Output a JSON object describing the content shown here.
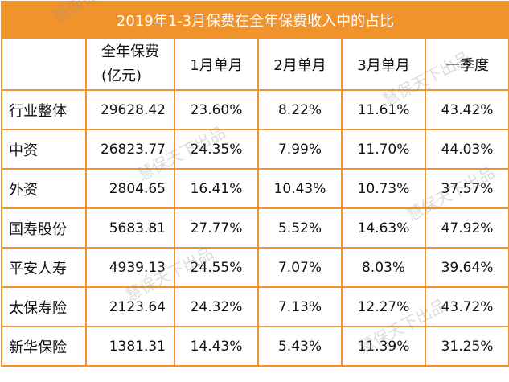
{
  "title": "2019年1-3月保费在全年保费收入中的占比",
  "headers": [
    "",
    "全年保费(亿元)",
    "1月单月",
    "2月单月",
    "3月单月",
    "一季度"
  ],
  "header_premium_line1": "全年保费",
  "header_premium_line2": "(亿元)",
  "rows": [
    {
      "name": "行业整体",
      "premium": "29628.42",
      "jan": "23.60%",
      "feb": "8.22%",
      "mar": "11.61%",
      "q1": "43.42%"
    },
    {
      "name": "中资",
      "premium": "26823.77",
      "jan": "24.35%",
      "feb": "7.99%",
      "mar": "11.70%",
      "q1": "44.03%"
    },
    {
      "name": "外资",
      "premium": "2804.65",
      "jan": "16.41%",
      "feb": "10.43%",
      "mar": "10.73%",
      "q1": "37.57%"
    },
    {
      "name": "国寿股份",
      "premium": "5683.81",
      "jan": "27.77%",
      "feb": "5.52%",
      "mar": "14.63%",
      "q1": "47.92%"
    },
    {
      "name": "平安人寿",
      "premium": "4939.13",
      "jan": "24.55%",
      "feb": "7.07%",
      "mar": "8.03%",
      "q1": "39.64%"
    },
    {
      "name": "太保寿险",
      "premium": "2123.64",
      "jan": "24.32%",
      "feb": "7.13%",
      "mar": "12.27%",
      "q1": "43.72%"
    },
    {
      "name": "新华保险",
      "premium": "1381.31",
      "jan": "14.43%",
      "feb": "5.43%",
      "mar": "11.39%",
      "q1": "31.25%"
    }
  ],
  "watermark": "慧保天下出品",
  "colors": {
    "accent": "#f0932b",
    "title_text": "#ffffff",
    "watermark": "#969696"
  }
}
